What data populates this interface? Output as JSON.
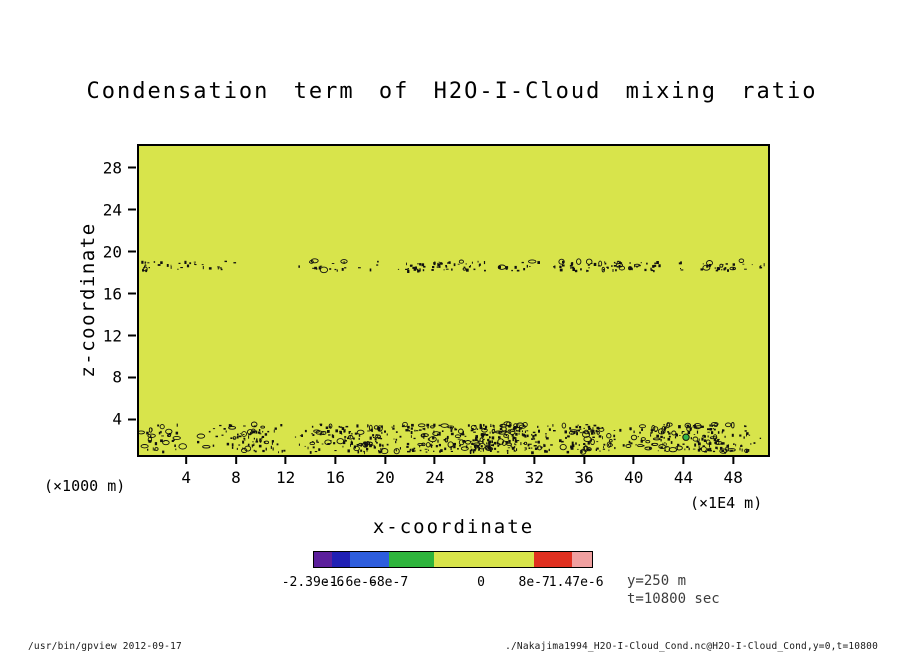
{
  "chart_data": {
    "type": "heatmap",
    "title": "Condensation term of H2O-I-Cloud mixing ratio",
    "xlabel": "x-coordinate",
    "ylabel": "z-coordinate",
    "x_unit": "(×1E4 m)",
    "y_unit": "(×1000 m)",
    "x_ticks": [
      4,
      8,
      12,
      16,
      20,
      24,
      28,
      32,
      36,
      40,
      44,
      48
    ],
    "y_ticks": [
      4,
      8,
      12,
      16,
      20,
      24,
      28
    ],
    "xlim": [
      0.2,
      50.8
    ],
    "ylim": [
      0.6,
      30.1
    ],
    "grid": false,
    "background_value": "≈0 (no condensation over most of domain)",
    "background_color": "#d8e44b",
    "colorbar": {
      "levels": [
        "-2.39e-6",
        "-1.6e-6",
        "-8e-7",
        "0",
        "8e-7",
        "1.47e-6"
      ],
      "label_positions_pct": [
        0,
        13,
        27,
        60,
        79,
        94
      ],
      "segments": [
        {
          "color": "#5c1f9c",
          "width_pct": 6.5
        },
        {
          "color": "#2020b4",
          "width_pct": 6.5
        },
        {
          "color": "#2d5ddd",
          "width_pct": 14
        },
        {
          "color": "#2eb43c",
          "width_pct": 16
        },
        {
          "color": "#d8e44b",
          "width_pct": 36
        },
        {
          "color": "#e03020",
          "width_pct": 14
        },
        {
          "color": "#f0a0a0",
          "width_pct": 7
        }
      ]
    },
    "features": [
      {
        "name": "surface-condensation-band",
        "z_range": [
          0.9,
          3.6
        ],
        "x_range": [
          0.2,
          50.8
        ],
        "description": "dense speckled band of small positive/negative condensation cells near the surface"
      },
      {
        "name": "upper-dotted-band",
        "z_range": [
          18.2,
          19.2
        ],
        "x_range": [
          1,
          50
        ],
        "description": "sparse dotted line of tiny condensation cells near cloud top"
      }
    ],
    "noise_bands": [
      {
        "z_min": 0.9,
        "z_max": 3.6,
        "count": 850,
        "clusters": 48,
        "spread": 26,
        "ring_frac": 0.18
      },
      {
        "z_min": 18.25,
        "z_max": 19.15,
        "count": 230,
        "clusters": 34,
        "spread": 22,
        "ring_frac": 0.1
      }
    ],
    "specks": [
      {
        "x": 44.2,
        "z": 2.3,
        "color": "#35b44a",
        "size": 3.2
      }
    ]
  },
  "annotations": {
    "slice": "y=250 m",
    "time": "t=10800 sec"
  },
  "footer": {
    "left": "/usr/bin/gpview  2012-09-17",
    "right": "./Nakajima1994_H2O-I-Cloud_Cond.nc@H2O-I-Cloud_Cond,y=0,t=10800"
  }
}
